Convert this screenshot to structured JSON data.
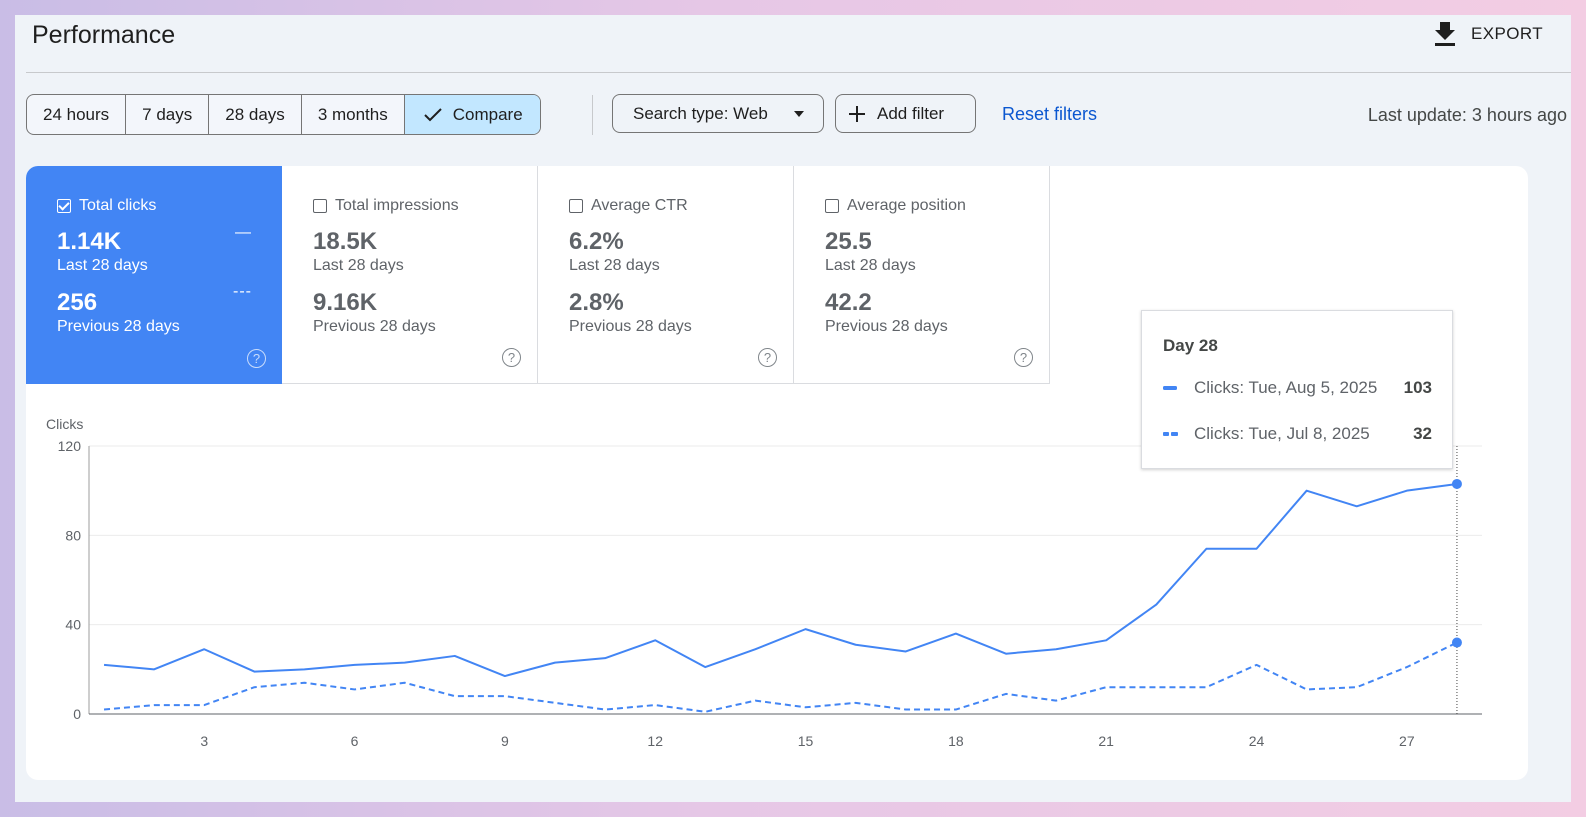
{
  "page": {
    "title": "Performance",
    "export_label": "EXPORT",
    "reset_label": "Reset filters",
    "last_update": "Last update: 3 hours ago"
  },
  "filters": {
    "ranges": [
      "24 hours",
      "7 days",
      "28 days",
      "3 months"
    ],
    "compare_label": "Compare",
    "compare_active": true,
    "search_type": "Search type: Web",
    "add_filter": "Add filter"
  },
  "metrics": [
    {
      "label": "Total clicks",
      "checked": true,
      "value": "1.14K",
      "period": "Last 28 days",
      "prev_value": "256",
      "prev_period": "Previous 28 days"
    },
    {
      "label": "Total impressions",
      "checked": false,
      "value": "18.5K",
      "period": "Last 28 days",
      "prev_value": "9.16K",
      "prev_period": "Previous 28 days"
    },
    {
      "label": "Average CTR",
      "checked": false,
      "value": "6.2%",
      "period": "Last 28 days",
      "prev_value": "2.8%",
      "prev_period": "Previous 28 days"
    },
    {
      "label": "Average position",
      "checked": false,
      "value": "25.5",
      "period": "Last 28 days",
      "prev_value": "42.2",
      "prev_period": "Previous 28 days"
    }
  ],
  "tooltip": {
    "title": "Day 28",
    "rows": [
      {
        "label": "Clicks: Tue, Aug 5, 2025",
        "value": "103",
        "style": "solid"
      },
      {
        "label": "Clicks: Tue, Jul 8, 2025",
        "value": "32",
        "style": "dashed"
      }
    ]
  },
  "colors": {
    "accent": "#4285f4",
    "link": "#0b57d0",
    "chip_active": "#c2e7ff"
  },
  "icons": [
    "download-icon",
    "check-icon",
    "dropdown-arrow-icon",
    "plus-icon",
    "help-icon"
  ],
  "chart_data": {
    "type": "line",
    "ylabel": "Clicks",
    "ylim": [
      0,
      120
    ],
    "yticks": [
      0,
      40,
      80,
      120
    ],
    "xlim": [
      1,
      28
    ],
    "xticks": [
      3,
      6,
      9,
      12,
      15,
      18,
      21,
      24,
      27
    ],
    "x": [
      1,
      2,
      3,
      4,
      5,
      6,
      7,
      8,
      9,
      10,
      11,
      12,
      13,
      14,
      15,
      16,
      17,
      18,
      19,
      20,
      21,
      22,
      23,
      24,
      25,
      26,
      27,
      28
    ],
    "series": [
      {
        "style": "solid",
        "values": [
          22,
          20,
          29,
          19,
          20,
          22,
          23,
          26,
          17,
          23,
          25,
          33,
          21,
          29,
          38,
          31,
          28,
          36,
          27,
          29,
          33,
          49,
          74,
          74,
          100,
          93,
          100,
          103
        ]
      },
      {
        "style": "dashed",
        "values": [
          2,
          4,
          4,
          12,
          14,
          11,
          14,
          8,
          8,
          5,
          2,
          4,
          1,
          6,
          3,
          5,
          2,
          2,
          9,
          6,
          12,
          12,
          12,
          22,
          11,
          12,
          21,
          32
        ]
      }
    ],
    "highlight_x": 28,
    "grid": true,
    "legend": "none"
  }
}
